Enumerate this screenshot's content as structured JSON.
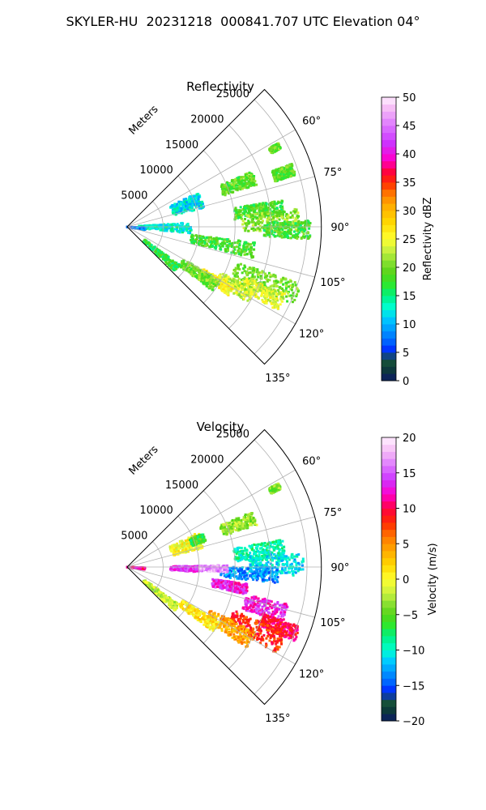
{
  "figure_title": "SKYLER-HU  20231218  000841.707 UTC Elevation 04°",
  "chart_data": [
    {
      "type": "heatmap",
      "title": "Reflectivity",
      "range_label": "Meters",
      "range_ticks": [
        5000,
        10000,
        15000,
        20000,
        25000
      ],
      "range_max": 27000,
      "azimuth_ticks": [
        "60°",
        "75°",
        "90°",
        "105°",
        "120°",
        "135°"
      ],
      "azimuth_tick_values": [
        60,
        75,
        90,
        105,
        120,
        135
      ],
      "azimuth_range": [
        45,
        135
      ],
      "grid": true,
      "colorbar": {
        "label": "Reflectivity dBZ",
        "range": [
          0,
          50
        ],
        "ticks": [
          "0",
          "5",
          "10",
          "15",
          "20",
          "25",
          "30",
          "35",
          "40",
          "45",
          "50"
        ],
        "tick_values": [
          0,
          5,
          10,
          15,
          20,
          25,
          30,
          35,
          40,
          45,
          50
        ],
        "stops": [
          [
            0,
            "#0b1a66"
          ],
          [
            2,
            "#0d3a3a"
          ],
          [
            4,
            "#1a5a3a"
          ],
          [
            5,
            "#0020ff"
          ],
          [
            7,
            "#0066ff"
          ],
          [
            9,
            "#0099ff"
          ],
          [
            11,
            "#00ccff"
          ],
          [
            13,
            "#00ffd0"
          ],
          [
            15,
            "#00f080"
          ],
          [
            17,
            "#2ee82e"
          ],
          [
            19,
            "#55d418"
          ],
          [
            21,
            "#88e030"
          ],
          [
            23,
            "#c8f040"
          ],
          [
            25,
            "#ffff30"
          ],
          [
            28,
            "#ffd700"
          ],
          [
            31,
            "#ffaa00"
          ],
          [
            33,
            "#ff7700"
          ],
          [
            35,
            "#ff2a00"
          ],
          [
            37,
            "#ff0044"
          ],
          [
            39,
            "#ff00cc"
          ],
          [
            42,
            "#cc33ff"
          ],
          [
            45,
            "#dd77ff"
          ],
          [
            48,
            "#f5bbf5"
          ],
          [
            50,
            "#fff0ff"
          ]
        ]
      },
      "echo_regions": [
        {
          "az": [
            61,
            63
          ],
          "r": [
            22500,
            24000
          ],
          "v": 20
        },
        {
          "az": [
            66,
            72
          ],
          "r": [
            14000,
            19000
          ],
          "v": 19
        },
        {
          "az": [
            69,
            73
          ],
          "r": [
            21500,
            24500
          ],
          "v": 19
        },
        {
          "az": [
            64,
            76
          ],
          "r": [
            6500,
            11000
          ],
          "v": 12
        },
        {
          "az": [
            80,
            86
          ],
          "r": [
            15000,
            22000
          ],
          "v": 18
        },
        {
          "az": [
            84,
            92
          ],
          "r": [
            16000,
            24000
          ],
          "v": 21
        },
        {
          "az": [
            88,
            94
          ],
          "r": [
            19000,
            25500
          ],
          "v": 18
        },
        {
          "az": [
            86,
            96
          ],
          "r": [
            1500,
            9000
          ],
          "v": 13
        },
        {
          "az": [
            92,
            100
          ],
          "r": [
            0,
            2500
          ],
          "v": 8
        },
        {
          "az": [
            97,
            104
          ],
          "r": [
            9000,
            18000
          ],
          "v": 18
        },
        {
          "az": [
            108,
            115
          ],
          "r": [
            16000,
            25500
          ],
          "v": 20
        },
        {
          "az": [
            113,
            119
          ],
          "r": [
            18000,
            24000
          ],
          "v": 24
        },
        {
          "az": [
            116,
            122
          ],
          "r": [
            14500,
            20000
          ],
          "v": 23
        },
        {
          "az": [
            119,
            124
          ],
          "r": [
            12000,
            17000
          ],
          "v": 26
        },
        {
          "az": [
            120,
            127
          ],
          "r": [
            9000,
            15000
          ],
          "v": 20
        },
        {
          "az": [
            126,
            133
          ],
          "r": [
            3000,
            9000
          ],
          "v": 17
        }
      ]
    },
    {
      "type": "heatmap",
      "title": "Velocity",
      "range_label": "Meters",
      "range_ticks": [
        5000,
        10000,
        15000,
        20000,
        25000
      ],
      "range_max": 27000,
      "azimuth_ticks": [
        "60°",
        "75°",
        "90°",
        "105°",
        "120°",
        "135°"
      ],
      "azimuth_tick_values": [
        60,
        75,
        90,
        105,
        120,
        135
      ],
      "azimuth_range": [
        45,
        135
      ],
      "grid": true,
      "colorbar": {
        "label": "Velocity (m/s)",
        "range": [
          -20,
          20
        ],
        "ticks": [
          "−20",
          "−15",
          "−10",
          "−5",
          "0",
          "5",
          "10",
          "15",
          "20"
        ],
        "tick_values": [
          -20,
          -15,
          -10,
          -5,
          0,
          5,
          10,
          15,
          20
        ],
        "stops": [
          [
            -20,
            "#0b1a66"
          ],
          [
            -18.5,
            "#0d3a3a"
          ],
          [
            -17,
            "#1a5a3a"
          ],
          [
            -16,
            "#0020ff"
          ],
          [
            -14.5,
            "#0066ff"
          ],
          [
            -13,
            "#0099ff"
          ],
          [
            -11.5,
            "#00ccff"
          ],
          [
            -10,
            "#00ffd0"
          ],
          [
            -8,
            "#00f080"
          ],
          [
            -6.5,
            "#2ee82e"
          ],
          [
            -5,
            "#55d418"
          ],
          [
            -3.5,
            "#88e030"
          ],
          [
            -2,
            "#c8f040"
          ],
          [
            0,
            "#ffff30"
          ],
          [
            2,
            "#ffd700"
          ],
          [
            4,
            "#ffaa00"
          ],
          [
            6,
            "#ff7700"
          ],
          [
            8,
            "#ff2a00"
          ],
          [
            10,
            "#ff0044"
          ],
          [
            12,
            "#ff00cc"
          ],
          [
            14,
            "#cc33ff"
          ],
          [
            16,
            "#dd77ff"
          ],
          [
            18,
            "#f5bbf5"
          ],
          [
            20,
            "#fff0ff"
          ]
        ]
      },
      "echo_regions": [
        {
          "az": [
            61,
            63
          ],
          "r": [
            22500,
            24000
          ],
          "v": -4
        },
        {
          "az": [
            66,
            72
          ],
          "r": [
            14000,
            19000
          ],
          "v": -3
        },
        {
          "az": [
            64,
            76
          ],
          "r": [
            6500,
            11000
          ],
          "v": 0
        },
        {
          "az": [
            66,
            72
          ],
          "r": [
            9500,
            11500
          ],
          "v": -6
        },
        {
          "az": [
            80,
            87
          ],
          "r": [
            15000,
            22000
          ],
          "v": -9
        },
        {
          "az": [
            85,
            93
          ],
          "r": [
            17000,
            24500
          ],
          "v": -11
        },
        {
          "az": [
            90,
            96
          ],
          "r": [
            13000,
            21000
          ],
          "v": -13
        },
        {
          "az": [
            89,
            94
          ],
          "r": [
            6000,
            10000
          ],
          "v": 14
        },
        {
          "az": [
            89,
            93
          ],
          "r": [
            10000,
            14000
          ],
          "v": 17
        },
        {
          "az": [
            92,
            98
          ],
          "r": [
            0,
            2500
          ],
          "v": 11
        },
        {
          "az": [
            98,
            103
          ],
          "r": [
            12000,
            17000
          ],
          "v": 13
        },
        {
          "az": [
            103,
            110
          ],
          "r": [
            17000,
            23000
          ],
          "v": 13
        },
        {
          "az": [
            109,
            114
          ],
          "r": [
            20000,
            25500
          ],
          "v": 10
        },
        {
          "az": [
            112,
            120
          ],
          "r": [
            16000,
            24000
          ],
          "v": 8
        },
        {
          "az": [
            117,
            124
          ],
          "r": [
            13000,
            20000
          ],
          "v": 4
        },
        {
          "az": [
            121,
            127
          ],
          "r": [
            9000,
            15000
          ],
          "v": 1
        },
        {
          "az": [
            126,
            133
          ],
          "r": [
            3000,
            9000
          ],
          "v": -2
        }
      ]
    }
  ]
}
